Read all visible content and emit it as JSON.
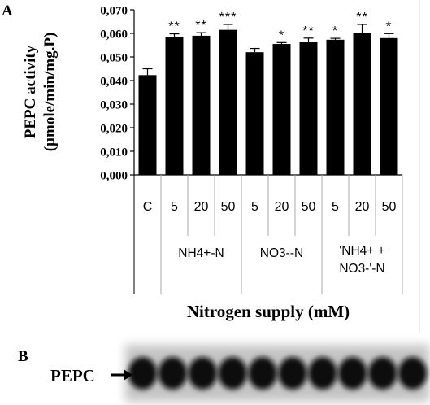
{
  "panel_a_label": "A",
  "panel_b_label": "B",
  "blot_band_label": "PEPC",
  "chart_data": {
    "type": "bar",
    "ylabel_line1": "PEPC activity",
    "ylabel_line2": "(µmole/min/mg.P)",
    "xlabel": "Nitrogen supply (mM)",
    "ylim": [
      0,
      0.07
    ],
    "yticks": [
      0,
      0.01,
      0.02,
      0.03,
      0.04,
      0.05,
      0.06,
      0.07
    ],
    "ytick_labels": [
      "0,000",
      "0,010",
      "0,020",
      "0,030",
      "0,040",
      "0,050",
      "0,060",
      "0,070"
    ],
    "categories": [
      "C",
      "5",
      "20",
      "50",
      "5",
      "20",
      "50",
      "5",
      "20",
      "50"
    ],
    "values": [
      0.0423,
      0.0585,
      0.059,
      0.0615,
      0.052,
      0.0555,
      0.0562,
      0.0573,
      0.0603,
      0.058
    ],
    "errors": [
      0.0027,
      0.0013,
      0.0013,
      0.0023,
      0.0016,
      0.0006,
      0.0018,
      0.0006,
      0.0035,
      0.0019
    ],
    "significance": [
      "",
      "**",
      "**",
      "***",
      "",
      "*",
      "**",
      "*",
      "**",
      "*"
    ],
    "groups": [
      {
        "label_lines": [
          "NH4+-N"
        ],
        "start": 1,
        "end": 3
      },
      {
        "label_lines": [
          "NO3--N"
        ],
        "start": 4,
        "end": 6
      },
      {
        "label_lines": [
          "'NH4+ +",
          "NO3-'-N"
        ],
        "start": 7,
        "end": 9
      }
    ],
    "grid": false,
    "bar_color": "#000000"
  }
}
